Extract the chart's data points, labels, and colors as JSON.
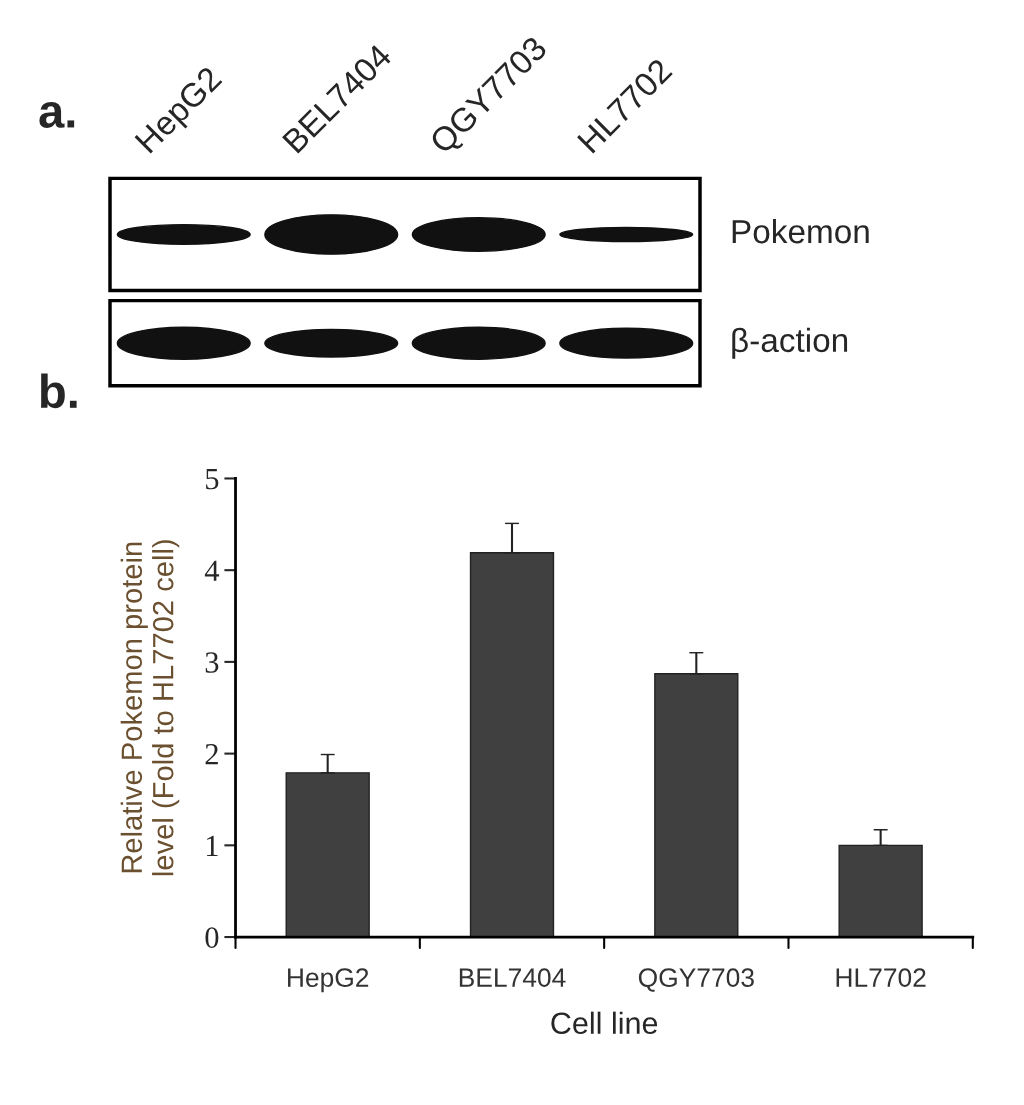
{
  "chart_data": [
    {
      "type": "other",
      "title": "a.",
      "categories": [
        "HepG2",
        "BEL7404",
        "QGY7703",
        "HL7702"
      ],
      "annotations": [
        "Pokemon",
        "β-action"
      ]
    },
    {
      "type": "bar",
      "title": "b.",
      "categories": [
        "HepG2",
        "BEL7404",
        "QGY7703",
        "HL7702"
      ],
      "values": [
        1.79,
        4.19,
        2.87,
        1.0
      ],
      "errors": [
        0.2,
        0.32,
        0.23,
        0.17
      ],
      "color": "#404040",
      "ylim": [
        0,
        5
      ],
      "yticks": [
        0,
        1,
        2,
        3,
        4,
        5
      ],
      "xlabel": "Cell line",
      "ylabel": "Relative Pokemon protein\nlevel (Fold to HL7702 cell)",
      "grid": false,
      "legend": false
    }
  ]
}
